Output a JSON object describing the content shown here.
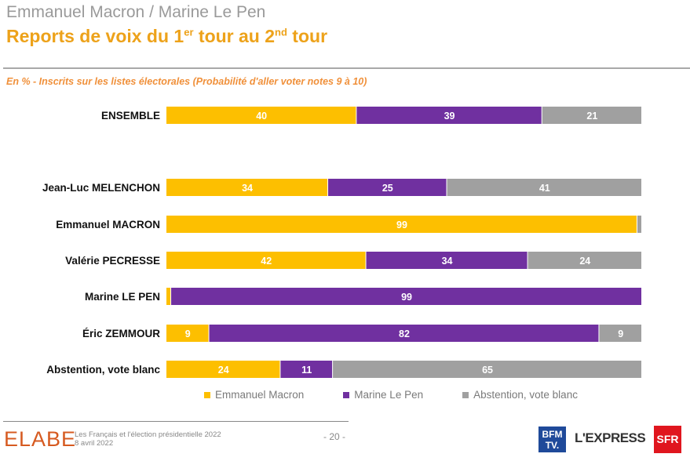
{
  "header": {
    "supertitle": "Emmanuel Macron / Marine Le Pen",
    "title_part1": "Reports de voix du 1",
    "title_sup1": "er",
    "title_part2": " tour au 2",
    "title_sup2": "nd",
    "title_part3": " tour",
    "subtitle": "En % - Inscrits sur les listes électorales (Probabilité d'aller voter notes 9 à 10)"
  },
  "chart_data": {
    "type": "bar",
    "orientation": "horizontal-stacked",
    "title": "Reports de voix du 1er tour au 2nd tour",
    "xlabel": "",
    "ylabel": "",
    "xlim": [
      0,
      100
    ],
    "grid": false,
    "legend_position": "bottom",
    "categories": [
      "ENSEMBLE",
      "Jean-Luc MELENCHON",
      "Emmanuel MACRON",
      "Valérie PECRESSE",
      "Marine LE PEN",
      "Éric ZEMMOUR",
      "Abstention, vote blanc"
    ],
    "series": [
      {
        "name": "Emmanuel Macron",
        "color": "#fdbf00",
        "values": [
          40,
          34,
          99,
          42,
          1,
          9,
          24
        ],
        "labels": [
          "40",
          "34",
          "99",
          "42",
          "",
          "9",
          "24"
        ]
      },
      {
        "name": "Marine Le Pen",
        "color": "#7030a0",
        "values": [
          39,
          25,
          0,
          34,
          99,
          82,
          11
        ],
        "labels": [
          "39",
          "25",
          "",
          "34",
          "99",
          "82",
          "11"
        ]
      },
      {
        "name": "Abstention, vote blanc",
        "color": "#a0a0a0",
        "values": [
          21,
          41,
          1,
          24,
          0,
          9,
          65
        ],
        "labels": [
          "21",
          "41",
          "1",
          "24",
          "",
          "9",
          "65"
        ]
      }
    ]
  },
  "legend": [
    {
      "label": "Emmanuel Macron",
      "color": "#fdbf00"
    },
    {
      "label": "Marine Le Pen",
      "color": "#7030a0"
    },
    {
      "label": "Abstention, vote blanc",
      "color": "#a0a0a0"
    }
  ],
  "footer": {
    "brand": "ELABE",
    "line1": "Les Français et l'élection présidentielle 2022",
    "line2": "8 avril 2022",
    "page": "- 20 -",
    "partner1_top": "BFM",
    "partner1_bottom": "TV.",
    "partner2": "L'EXPRESS",
    "partner3": "SFR"
  }
}
